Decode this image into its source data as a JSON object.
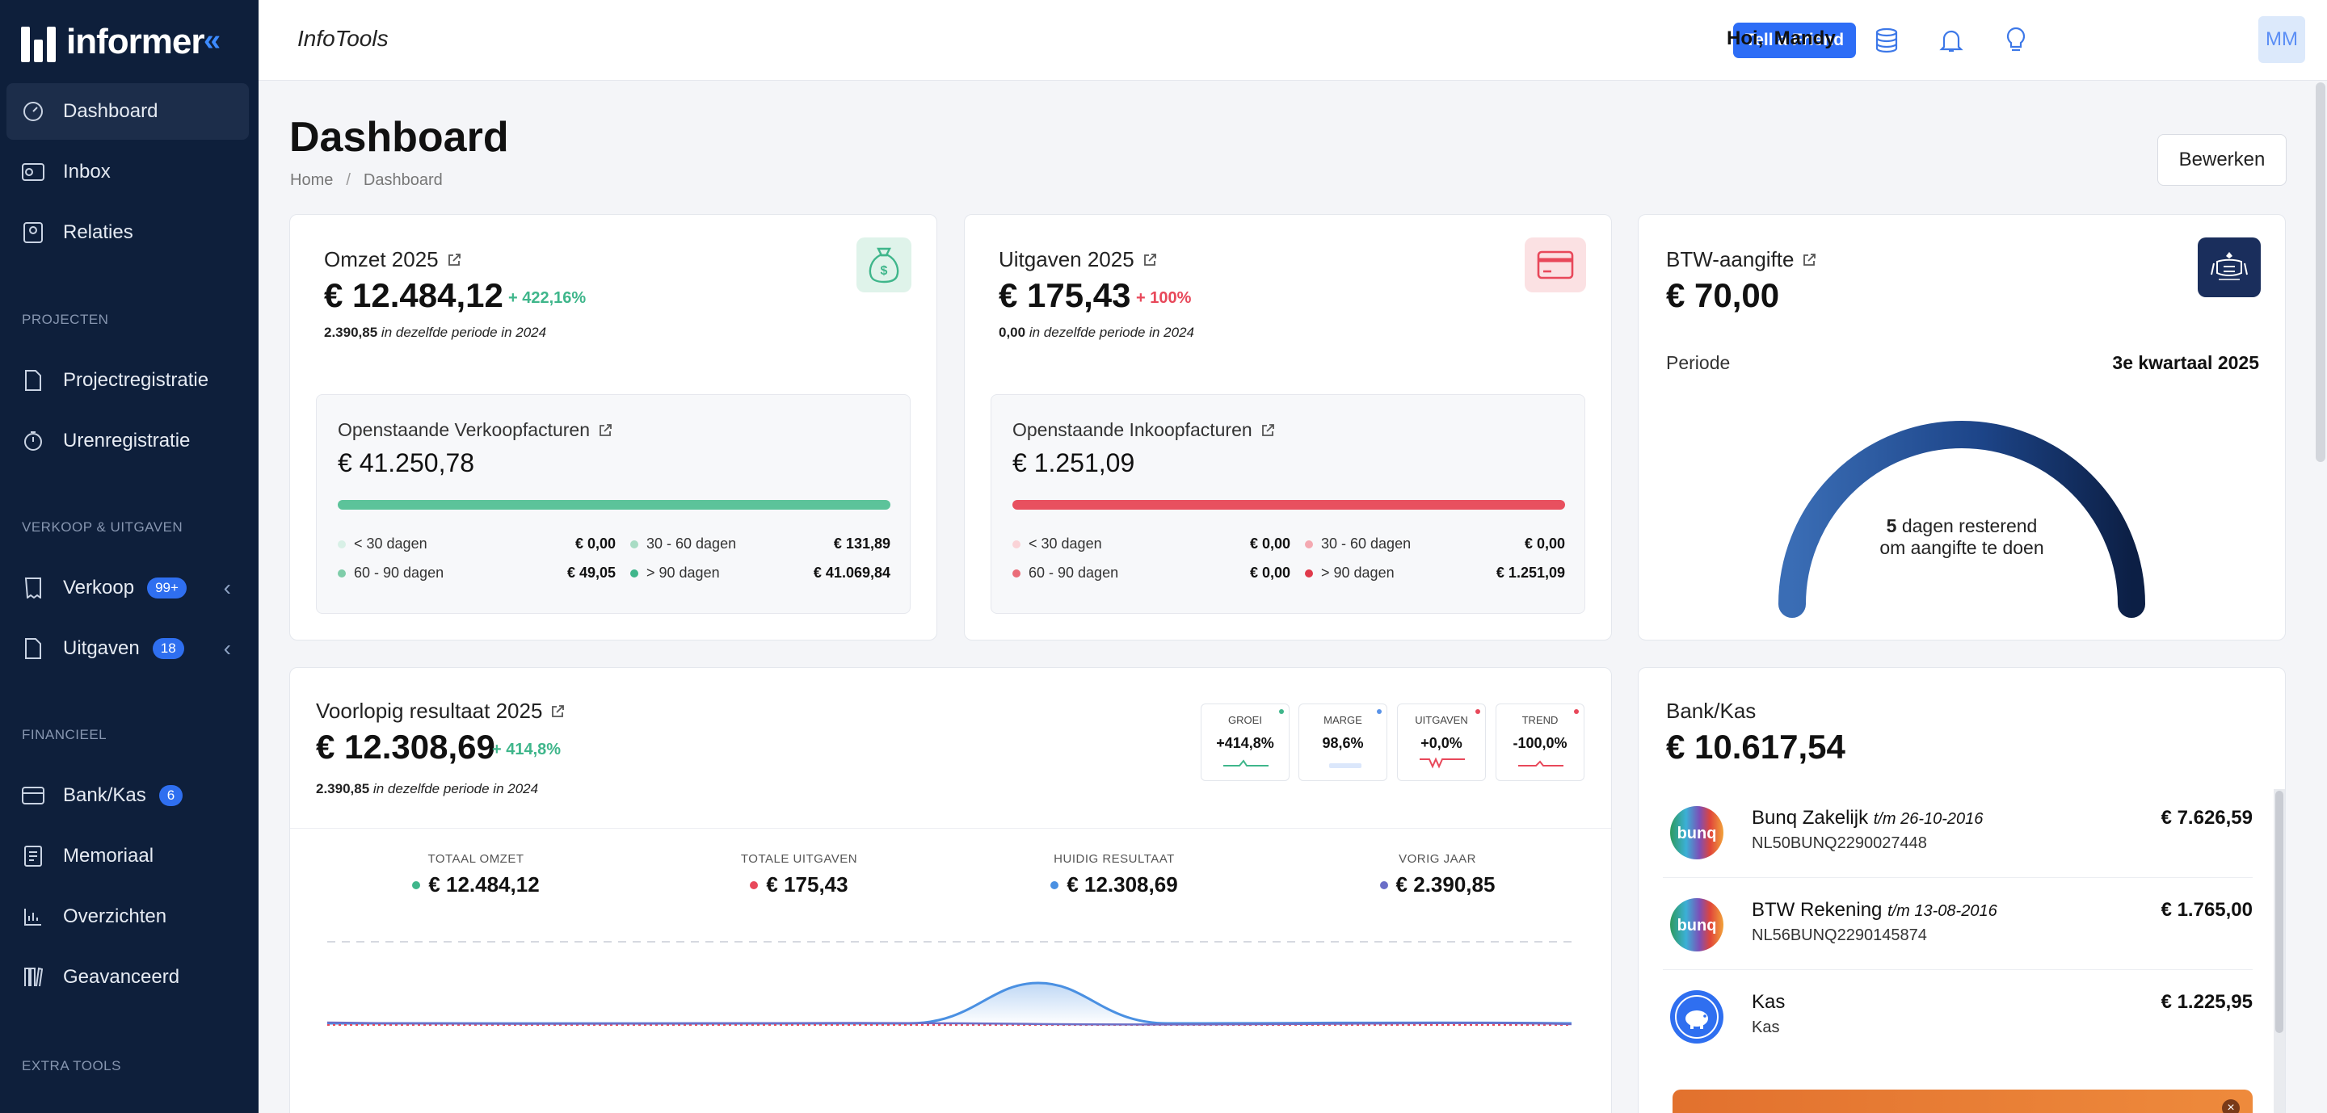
{
  "brand": {
    "name": "informer"
  },
  "sidebar": {
    "items": [
      {
        "label": "Dashboard"
      },
      {
        "label": "Inbox"
      },
      {
        "label": "Relaties"
      },
      {
        "label": "Projectregistratie"
      },
      {
        "label": "Urenregistratie"
      },
      {
        "label": "Verkoop",
        "badge": "99+"
      },
      {
        "label": "Uitgaven",
        "badge": "18"
      },
      {
        "label": "Bank/Kas",
        "badge": "6"
      },
      {
        "label": "Memoriaal"
      },
      {
        "label": "Overzichten"
      },
      {
        "label": "Geavanceerd"
      }
    ],
    "sections": [
      "PROJECTEN",
      "VERKOOP & UITGAVEN",
      "FINANCIEEL",
      "EXTRA TOOLS"
    ]
  },
  "topbar": {
    "app_title": "InfoTools",
    "tell_friend": "Tell a Friend",
    "greeting": "Hoi,  Mandy",
    "avatar_initials": "MM",
    "icons": [
      "database-icon",
      "bell-icon",
      "lightbulb-icon"
    ]
  },
  "page": {
    "title": "Dashboard",
    "breadcrumb": [
      "Home",
      "Dashboard"
    ],
    "edit_label": "Bewerken"
  },
  "omzet": {
    "title": "Omzet 2025",
    "amount": "€ 12.484,12",
    "delta": "+ 422,16%",
    "compare_value": "2.390,85",
    "compare_text": " in dezelfde periode in 2024",
    "open": {
      "title": "Openstaande Verkoopfacturen",
      "amount": "€ 41.250,78",
      "legend": [
        {
          "label": "< 30 dagen",
          "value": "€ 0,00"
        },
        {
          "label": "30 - 60 dagen",
          "value": "€ 131,89"
        },
        {
          "label": "60 - 90 dagen",
          "value": "€ 49,05"
        },
        {
          "label": "> 90 dagen",
          "value": "€ 41.069,84"
        }
      ]
    }
  },
  "uitgaven": {
    "title": "Uitgaven 2025",
    "amount": "€ 175,43",
    "delta": "+ 100%",
    "compare_value": "0,00",
    "compare_text": " in dezelfde periode in 2024",
    "open": {
      "title": "Openstaande Inkoopfacturen",
      "amount": "€ 1.251,09",
      "legend": [
        {
          "label": "< 30 dagen",
          "value": "€ 0,00"
        },
        {
          "label": "30 - 60 dagen",
          "value": "€ 0,00"
        },
        {
          "label": "60 - 90 dagen",
          "value": "€ 0,00"
        },
        {
          "label": "> 90 dagen",
          "value": "€ 1.251,09"
        }
      ]
    }
  },
  "btw": {
    "title": "BTW-aangifte",
    "amount": "€ 70,00",
    "period_label": "Periode",
    "period_value": "3e kwartaal 2025",
    "days": "5",
    "days_text": " dagen resterend",
    "days_line2": "om aangifte te doen",
    "gauge_fraction": 1.0
  },
  "resultaat": {
    "title": "Voorlopig resultaat 2025",
    "amount": "€ 12.308,69",
    "delta": "+ 414,8%",
    "compare_value": "2.390,85",
    "compare_text": " in dezelfde periode in 2024",
    "kpis": [
      {
        "label": "GROEI",
        "value": "+414,8%",
        "color": "#3fb68b"
      },
      {
        "label": "MARGE",
        "value": "98,6%",
        "color": "#5a93e8"
      },
      {
        "label": "UITGAVEN",
        "value": "+0,0%",
        "color": "#e8485a"
      },
      {
        "label": "TREND",
        "value": "-100,0%",
        "color": "#e8485a"
      }
    ],
    "totals": [
      {
        "label": "TOTAAL OMZET",
        "value": "€ 12.484,12",
        "color": "#3fb68b"
      },
      {
        "label": "TOTALE UITGAVEN",
        "value": "€ 175,43",
        "color": "#e8485a"
      },
      {
        "label": "HUIDIG RESULTAAT",
        "value": "€ 12.308,69",
        "color": "#4a90e2"
      },
      {
        "label": "VORIG JAAR",
        "value": "€ 2.390,85",
        "color": "#6b6fc8"
      }
    ]
  },
  "bank": {
    "title": "Bank/Kas",
    "amount": "€ 10.617,54",
    "accounts": [
      {
        "name": "Bunq Zakelijk",
        "date": "t/m 26-10-2016",
        "iban": "NL50BUNQ2290027448",
        "amount": "€ 7.626,59",
        "logo": "bunq"
      },
      {
        "name": "BTW Rekening",
        "date": "t/m 13-08-2016",
        "iban": "NL56BUNQ2290145874",
        "amount": "€ 1.765,00",
        "logo": "bunq"
      },
      {
        "name": "Kas",
        "date": "",
        "iban": "Kas",
        "amount": "€ 1.225,95",
        "logo": "piggy-bank-icon"
      }
    ]
  },
  "colors": {
    "sidebar": "#0e1f3b",
    "accent": "#2d6df6",
    "green": "#5cc39a",
    "red": "#e8505f"
  }
}
